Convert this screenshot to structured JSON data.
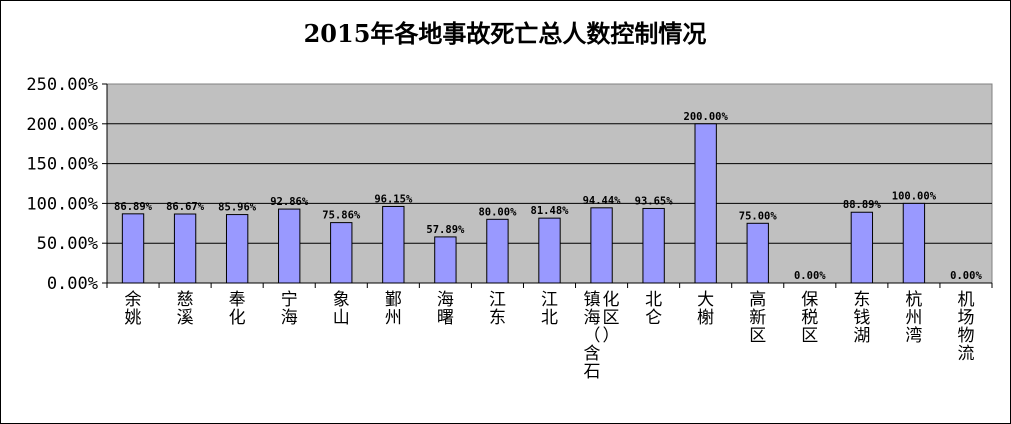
{
  "chart_data": {
    "type": "bar",
    "title": "2015年各地事故死亡总人数控制情况",
    "xlabel": "",
    "ylabel": "",
    "ylim": [
      0,
      250
    ],
    "yticks": [
      "0.00%",
      "50.00%",
      "100.00%",
      "150.00%",
      "200.00%",
      "250.00%"
    ],
    "grid": true,
    "bar_color": "#9999FF",
    "plot_background": "#C0C0C0",
    "categories": [
      "余姚",
      "慈溪",
      "奉化",
      "宁海",
      "象山",
      "鄞州",
      "海曙",
      "江东",
      "江北",
      "镇海（含石化区）",
      "北仑",
      "大榭",
      "高新区",
      "保税区",
      "东钱湖",
      "杭州湾",
      "机场物流"
    ],
    "values": [
      86.89,
      86.67,
      85.96,
      92.86,
      75.86,
      96.15,
      57.89,
      80.0,
      81.48,
      94.44,
      93.65,
      200.0,
      75.0,
      0.0,
      88.89,
      100.0,
      0.0
    ],
    "data_labels": [
      "86.89%",
      "86.67%",
      "85.96%",
      "92.86%",
      "75.86%",
      "96.15%",
      "57.89%",
      "80.00%",
      "81.48%",
      "94.44%",
      "93.65%",
      "200.00%",
      "75.00%",
      "0.00%",
      "88.89%",
      "100.00%",
      "0.00%"
    ]
  }
}
